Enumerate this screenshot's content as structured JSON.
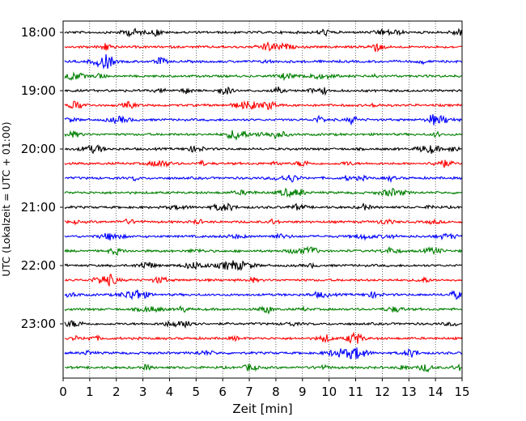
{
  "chart_data": {
    "type": "line",
    "title": "",
    "xlabel": "Zeit  [min]",
    "ylabel": "UTC (Lokalzeit = UTC + 01:00)",
    "xlim": [
      0,
      15
    ],
    "xticks": [
      0,
      1,
      2,
      3,
      4,
      5,
      6,
      7,
      8,
      9,
      10,
      11,
      12,
      13,
      14,
      15
    ],
    "xtick_labels": [
      "0",
      "1",
      "2",
      "3",
      "4",
      "5",
      "6",
      "7",
      "8",
      "9",
      "10",
      "11",
      "12",
      "13",
      "14",
      "15"
    ],
    "ytick_labels": [
      "18:00",
      "19:00",
      "20:00",
      "21:00",
      "22:00",
      "23:00"
    ],
    "grid": "vertical-dotted",
    "trace_colors": [
      "#000000",
      "#ff0000",
      "#0000ff",
      "#008000"
    ],
    "trace_count": 24,
    "trace_interval_min": 15
  }
}
